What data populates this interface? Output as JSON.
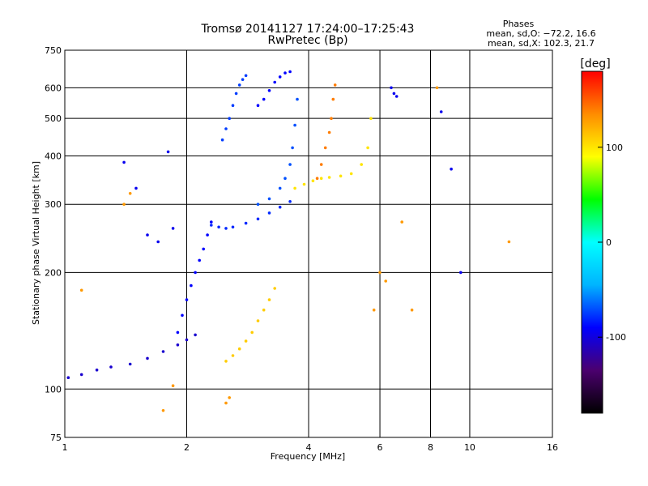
{
  "chart_data": {
    "type": "scatter",
    "title": "Tromsø 20141127 17:24:00–17:25:43",
    "subtitle": "RwPretec (Bp)",
    "xlabel": "Frequency [MHz]",
    "ylabel": "Stationary phase Virtual Height [km]",
    "x_scale": "log",
    "y_scale": "log",
    "xlim": [
      1,
      16
    ],
    "ylim": [
      75,
      750
    ],
    "x_ticks": [
      1,
      2,
      4,
      6,
      8,
      10,
      16
    ],
    "x_gridlines": [
      2,
      4,
      6,
      8,
      10
    ],
    "y_ticks": [
      75,
      100,
      200,
      300,
      400,
      500,
      600,
      750
    ],
    "y_gridlines": [
      100,
      200,
      300,
      400,
      500,
      600
    ],
    "grid": true,
    "phase_stats": {
      "heading": "Phases",
      "o_line": "mean, sd,O: −72.2, 16.6",
      "x_line": "mean, sd,X: 102.3, 21.7"
    },
    "colorbar": {
      "label": "[deg]",
      "range": [
        -180,
        180
      ],
      "ticks": [
        100,
        0,
        -100
      ],
      "colors": [
        "#000000",
        "#4b006e",
        "#0000ff",
        "#00b4ff",
        "#00ffff",
        "#00ff00",
        "#ffff00",
        "#ff8c00",
        "#ff0000"
      ]
    },
    "series": [
      {
        "trace": "low-o-blue",
        "phase": -105,
        "x": [
          1.02,
          1.1,
          1.2,
          1.3,
          1.45,
          1.6,
          1.75,
          1.9,
          2.0,
          2.1
        ],
        "y": [
          107,
          109,
          112,
          114,
          116,
          120,
          125,
          130,
          134,
          138
        ]
      },
      {
        "trace": "o-lower-vertical",
        "phase": -90,
        "x": [
          1.9,
          1.95,
          2.0,
          2.05,
          2.1,
          2.15,
          2.2,
          2.25,
          2.3
        ],
        "y": [
          140,
          155,
          170,
          185,
          200,
          215,
          230,
          250,
          270
        ]
      },
      {
        "trace": "o-body-2to3",
        "phase": -80,
        "x": [
          2.3,
          2.4,
          2.5,
          2.6,
          2.8,
          3.0,
          3.2,
          3.4,
          3.6
        ],
        "y": [
          265,
          262,
          260,
          262,
          268,
          275,
          285,
          295,
          305
        ]
      },
      {
        "trace": "o-cusp-3to3.7",
        "phase": -70,
        "x": [
          3.0,
          3.2,
          3.4,
          3.5,
          3.6,
          3.65,
          3.7,
          3.75
        ],
        "y": [
          300,
          310,
          330,
          350,
          380,
          420,
          480,
          560
        ]
      },
      {
        "trace": "o-upper-2.5to2.8",
        "phase": -75,
        "x": [
          2.45,
          2.5,
          2.55,
          2.6,
          2.65,
          2.7,
          2.75,
          2.8
        ],
        "y": [
          440,
          470,
          500,
          540,
          580,
          610,
          630,
          645
        ]
      },
      {
        "trace": "o-upper-3to3.6",
        "phase": -90,
        "x": [
          3.0,
          3.1,
          3.2,
          3.3,
          3.4,
          3.5,
          3.6
        ],
        "y": [
          540,
          560,
          590,
          620,
          640,
          655,
          660
        ]
      },
      {
        "trace": "x-lower-orange",
        "phase": 110,
        "x": [
          2.5,
          2.6,
          2.7,
          2.8,
          2.9,
          3.0,
          3.1,
          3.2,
          3.3
        ],
        "y": [
          118,
          122,
          127,
          133,
          140,
          150,
          160,
          170,
          182
        ]
      },
      {
        "trace": "x-upper-4to5.8",
        "phase": 100,
        "x": [
          3.7,
          3.9,
          4.1,
          4.3,
          4.5,
          4.8,
          5.1,
          5.4,
          5.6,
          5.7
        ],
        "y": [
          330,
          338,
          345,
          350,
          352,
          355,
          360,
          380,
          420,
          500
        ]
      },
      {
        "trace": "x-cusp-4.2to4.6",
        "phase": 140,
        "x": [
          4.2,
          4.3,
          4.4,
          4.5,
          4.55,
          4.6,
          4.65
        ],
        "y": [
          350,
          380,
          420,
          460,
          500,
          560,
          610
        ]
      },
      {
        "trace": "scatter-misc",
        "phase": -95,
        "x": [
          1.4,
          1.5,
          1.6,
          1.7,
          1.8,
          1.85,
          6.4,
          6.5,
          6.6,
          8.5,
          9.0,
          9.5
        ],
        "y": [
          385,
          330,
          250,
          240,
          410,
          260,
          600,
          580,
          570,
          520,
          370,
          200
        ]
      },
      {
        "trace": "scatter-warm",
        "phase": 130,
        "x": [
          1.1,
          1.4,
          1.45,
          1.75,
          1.85,
          2.5,
          2.55,
          5.8,
          6.0,
          6.2,
          6.8,
          7.2,
          8.3,
          12.5
        ],
        "y": [
          180,
          300,
          320,
          88,
          102,
          92,
          95,
          160,
          200,
          190,
          270,
          160,
          600,
          240
        ]
      }
    ]
  }
}
